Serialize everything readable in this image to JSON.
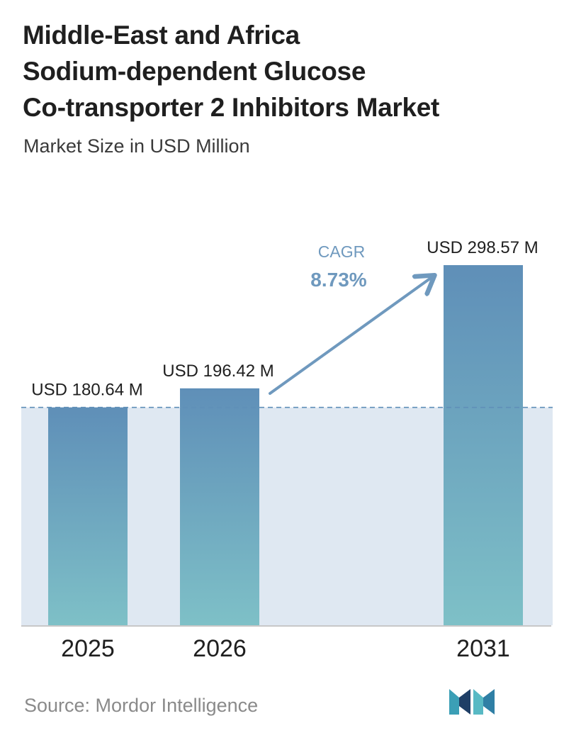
{
  "header": {
    "title_lines": [
      "Middle-East and Africa",
      "Sodium-dependent Glucose",
      "Co-transporter 2 Inhibitors Market"
    ],
    "subtitle": "Market Size in USD Million"
  },
  "chart_data": {
    "type": "bar",
    "title": "Middle-East and Africa Sodium-dependent Glucose Co-transporter 2 Inhibitors Market",
    "subtitle": "Market Size in USD Million",
    "categories": [
      "2025",
      "2026",
      "2031"
    ],
    "values": [
      180.64,
      196.42,
      298.57
    ],
    "value_labels": [
      "USD 180.64 M",
      "USD 196.42 M",
      "USD 298.57 M"
    ],
    "ylim": [
      0,
      298.57
    ],
    "grid": false,
    "reference_line": 180.64,
    "cagr": {
      "label": "CAGR",
      "value": "8.73%"
    },
    "colors": {
      "bar_top": "#5f8fb8",
      "bar_bottom": "#7ec0c7",
      "band": "#dfe8f2",
      "arrow": "#6f99be",
      "cagr_text": "#6f99be",
      "reference_line": "#5f8fb8",
      "axis": "#c8c8c8"
    }
  },
  "footer": {
    "source": "Source:  Mordor Intelligence",
    "logo_icon": "mordor-intelligence-logo",
    "logo_colors": [
      "#1f3f66",
      "#3b9fb6",
      "#58b9c4"
    ]
  }
}
